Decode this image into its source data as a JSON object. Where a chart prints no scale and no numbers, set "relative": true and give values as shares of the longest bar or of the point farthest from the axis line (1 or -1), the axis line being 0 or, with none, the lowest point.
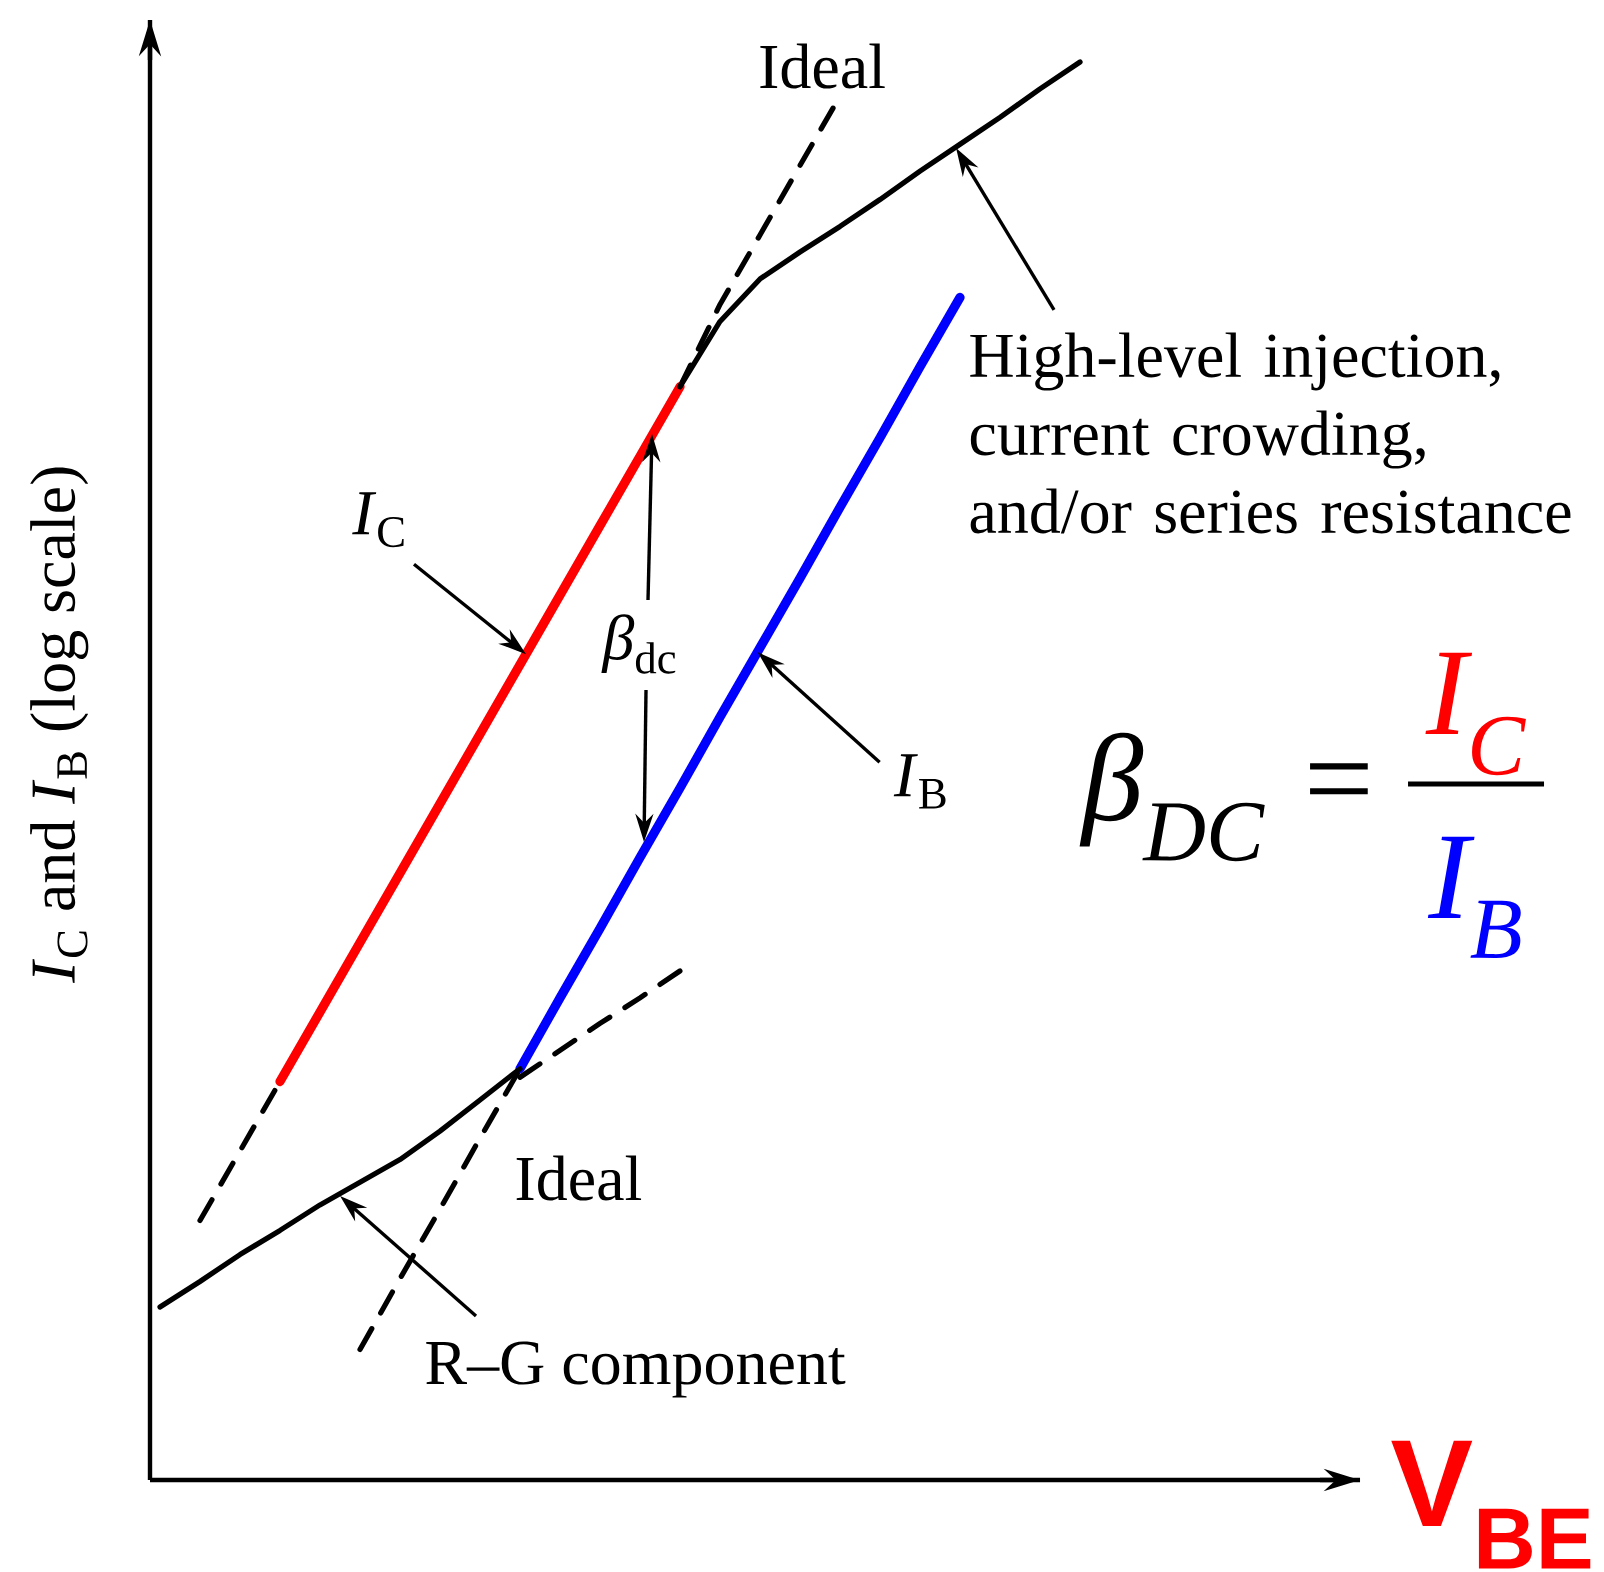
{
  "chart_data": {
    "type": "line",
    "relative": true,
    "xlabel": "V$_{BE}$",
    "ylabel": "*I*$_{C}$ and *I*$_{B}$ (log scale)",
    "categories": [
      null,
      null,
      null,
      null,
      null,
      null,
      null,
      null,
      null,
      null,
      null,
      null,
      null,
      null,
      null,
      null,
      null,
      null,
      null,
      null,
      null,
      null,
      null,
      null
    ],
    "series": [
      {
        "name": "*I*$_{C}$",
        "color": "#ff0000",
        "values": [
          null,
          null,
          null,
          0.281,
          0.33,
          0.379,
          0.428,
          0.477,
          0.526,
          0.575,
          0.624,
          0.673,
          0.722,
          0.771,
          null,
          null,
          null,
          null,
          null,
          null,
          null,
          null,
          null,
          null
        ]
      },
      {
        "color": "#000000",
        "values": [
          null,
          null,
          null,
          null,
          null,
          null,
          null,
          null,
          null,
          null,
          null,
          null,
          null,
          0.771,
          0.817,
          0.847,
          0.866,
          0.884,
          0.903,
          0.923,
          0.942,
          0.961,
          0.981,
          1.0
        ]
      },
      {
        "color": "#000000",
        "line_style": "dashed",
        "values": [
          null,
          0.183,
          0.232,
          0.281,
          null,
          null,
          null,
          null,
          null,
          null,
          null,
          null,
          null,
          null,
          null,
          null,
          null,
          null,
          null,
          null,
          null,
          null,
          null,
          null
        ]
      },
      {
        "color": "#000000",
        "line_style": "dashed",
        "values": [
          null,
          null,
          null,
          null,
          null,
          null,
          null,
          null,
          null,
          null,
          null,
          null,
          null,
          0.771,
          0.829,
          0.878,
          0.927,
          0.976,
          null,
          null,
          null,
          null,
          null,
          null
        ]
      },
      {
        "name": "*I*$_{B}$",
        "color": "#0000ff",
        "values": [
          null,
          null,
          null,
          null,
          null,
          null,
          null,
          null,
          null,
          0.29,
          0.34,
          0.389,
          0.439,
          0.488,
          0.538,
          0.587,
          0.636,
          0.686,
          0.735,
          0.785,
          0.834,
          null,
          null,
          null
        ]
      },
      {
        "color": "#000000",
        "values": [
          0.122,
          0.14,
          0.159,
          0.176,
          0.194,
          0.21,
          0.226,
          0.246,
          0.268,
          0.29,
          null,
          null,
          null,
          null,
          null,
          null,
          null,
          null,
          null,
          null,
          null,
          null,
          null,
          null
        ]
      },
      {
        "color": "#000000",
        "line_style": "dashed",
        "values": [
          null,
          null,
          null,
          null,
          null,
          0.092,
          0.142,
          0.191,
          0.241,
          0.29,
          null,
          null,
          null,
          null,
          null,
          null,
          null,
          null,
          null,
          null,
          null,
          null,
          null,
          null
        ]
      },
      {
        "color": "#000000",
        "line_style": "dashed",
        "values": [
          null,
          null,
          null,
          null,
          null,
          null,
          null,
          null,
          null,
          0.284,
          0.303,
          0.322,
          0.34,
          0.359,
          null,
          null,
          null,
          null,
          null,
          null,
          null,
          null,
          null,
          null
        ]
      }
    ],
    "annotations": [
      "Ideal",
      "High-level injection, current crowding, and/or series resistance",
      "*β*$_{dc}$",
      "Ideal",
      "R–G component",
      "β$_{DC}$ =",
      "I$_{C}$",
      "I$_{B}$"
    ]
  }
}
